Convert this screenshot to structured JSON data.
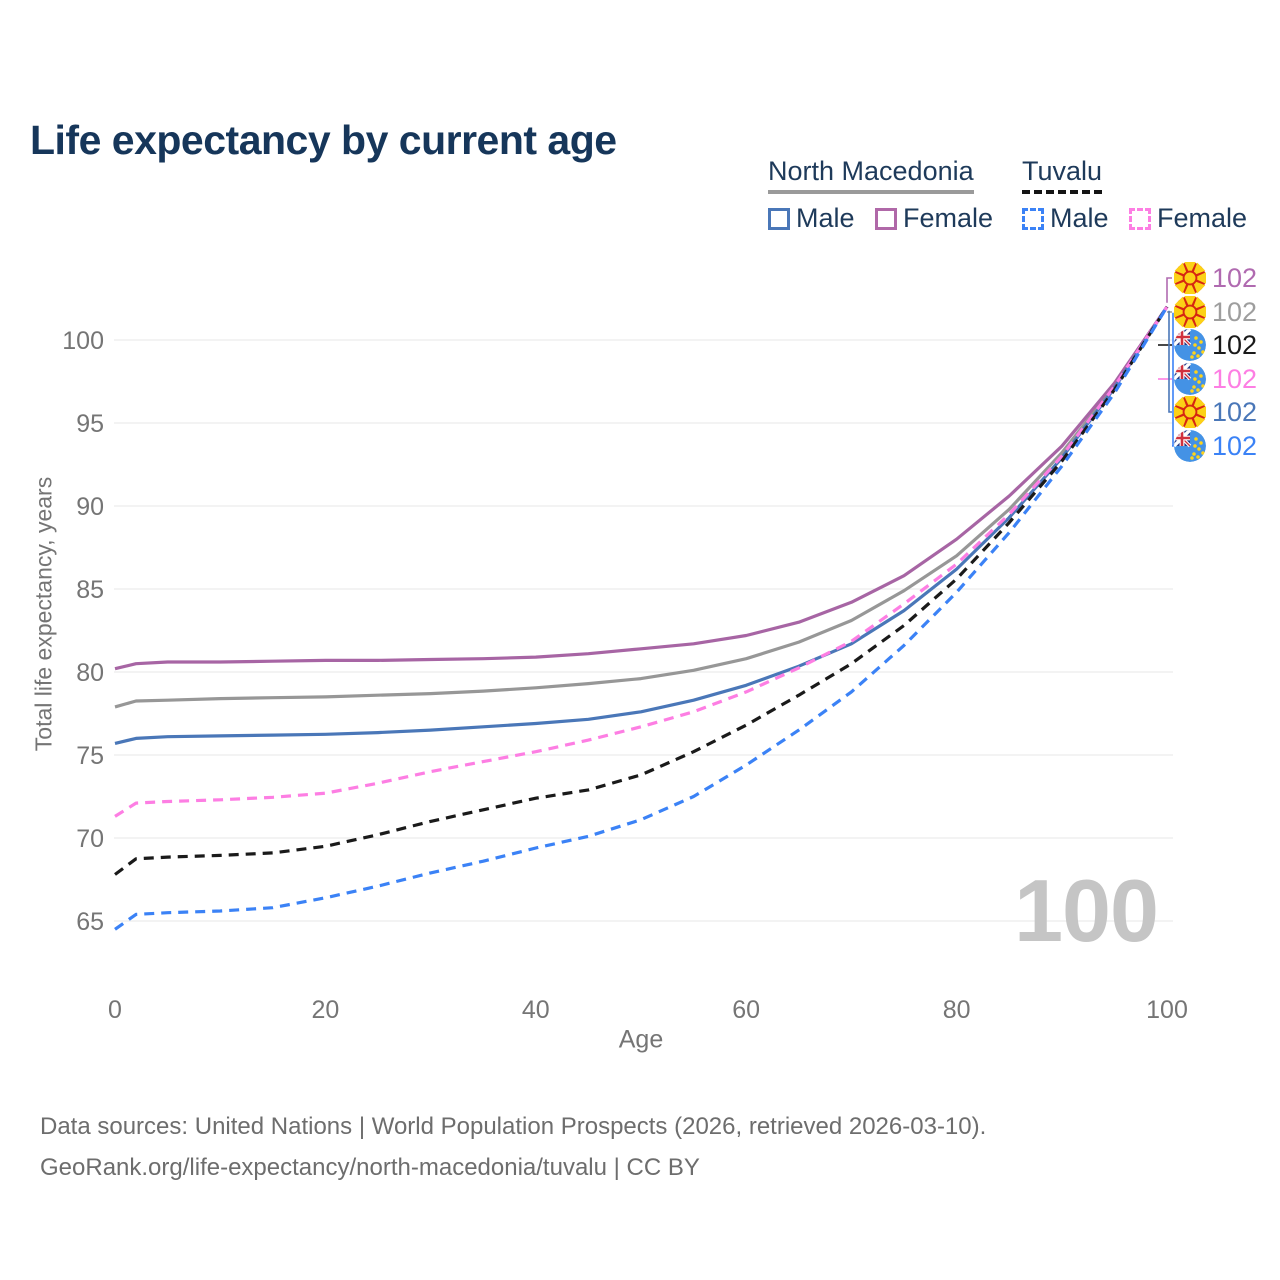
{
  "title": "Life expectancy by current age",
  "legend": {
    "groups": [
      {
        "label": "North Macedonia",
        "underline_style": "solid",
        "underline_color": "#9a9a9a",
        "items": [
          {
            "label": "Male",
            "color": "#4a77b8",
            "dash": false
          },
          {
            "label": "Female",
            "color": "#b068a8",
            "dash": false
          }
        ]
      },
      {
        "label": "Tuvalu",
        "underline_style": "dashed",
        "underline_color": "#141414",
        "items": [
          {
            "label": "Male",
            "color": "#3b82f6",
            "dash": true
          },
          {
            "label": "Female",
            "color": "#fd7ee3",
            "dash": true
          }
        ]
      }
    ]
  },
  "watermark": "100",
  "footer": {
    "line1": "Data sources: United Nations | World Population Prospects (2026, retrieved 2026-03-10).",
    "line2": "GeoRank.org/life-expectancy/north-macedonia/tuvalu | CC BY"
  },
  "chart_data": {
    "type": "line",
    "xlabel": "Age",
    "ylabel": "Total life expectancy, years",
    "x_ticks": [
      0,
      20,
      40,
      60,
      80,
      100
    ],
    "y_ticks": [
      65,
      70,
      75,
      80,
      85,
      90,
      95,
      100
    ],
    "xlim": [
      0,
      100
    ],
    "ylim": [
      63.5,
      103
    ],
    "grid": "horizontal",
    "x": [
      0,
      2,
      5,
      10,
      15,
      20,
      25,
      30,
      35,
      40,
      45,
      50,
      55,
      60,
      65,
      70,
      75,
      80,
      85,
      90,
      95,
      100
    ],
    "series": [
      {
        "id": "nm-total",
        "name": "North Macedonia",
        "country": "North Macedonia",
        "sex": "Both",
        "flag": "mk",
        "color": "#979797",
        "dash": false,
        "end_value": 102,
        "values": [
          77.9,
          78.25,
          78.3,
          78.4,
          78.45,
          78.5,
          78.6,
          78.7,
          78.85,
          79.05,
          79.3,
          79.6,
          80.1,
          80.8,
          81.8,
          83.1,
          84.9,
          87.0,
          89.8,
          93.2,
          97.2,
          102
        ]
      },
      {
        "id": "nm-female",
        "name": "North Macedonia Female",
        "country": "North Macedonia",
        "sex": "Female",
        "flag": "mk",
        "color": "#a765a4",
        "dash": false,
        "end_value": 102,
        "values": [
          80.2,
          80.5,
          80.6,
          80.6,
          80.65,
          80.7,
          80.7,
          80.75,
          80.8,
          80.9,
          81.1,
          81.4,
          81.7,
          82.2,
          83.0,
          84.2,
          85.8,
          88.0,
          90.6,
          93.6,
          97.4,
          102
        ]
      },
      {
        "id": "nm-male",
        "name": "North Macedonia Male",
        "country": "North Macedonia",
        "sex": "Male",
        "flag": "mk",
        "color": "#4a77b8",
        "dash": false,
        "end_value": 102,
        "values": [
          75.7,
          76.0,
          76.1,
          76.15,
          76.2,
          76.25,
          76.35,
          76.5,
          76.7,
          76.9,
          77.15,
          77.6,
          78.3,
          79.2,
          80.35,
          81.7,
          83.7,
          86.2,
          89.3,
          92.9,
          97.1,
          102
        ]
      },
      {
        "id": "tv-female",
        "name": "Tuvalu Female",
        "country": "Tuvalu",
        "sex": "Female",
        "flag": "tv",
        "color": "#fd7ee3",
        "dash": true,
        "end_value": 102,
        "values": [
          71.3,
          72.1,
          72.2,
          72.3,
          72.45,
          72.7,
          73.3,
          74.0,
          74.6,
          75.2,
          75.9,
          76.7,
          77.6,
          78.8,
          80.25,
          81.85,
          84.1,
          86.5,
          89.5,
          93.0,
          97.2,
          102
        ]
      },
      {
        "id": "tv-total",
        "name": "Tuvalu",
        "country": "Tuvalu",
        "sex": "Both",
        "flag": "tv",
        "color": "#1a1a1a",
        "dash": true,
        "end_value": 102,
        "values": [
          67.8,
          68.75,
          68.85,
          68.95,
          69.1,
          69.5,
          70.2,
          71.0,
          71.7,
          72.4,
          72.9,
          73.8,
          75.2,
          76.8,
          78.6,
          80.5,
          82.8,
          85.6,
          89.0,
          92.7,
          97.0,
          102
        ]
      },
      {
        "id": "tv-male",
        "name": "Tuvalu Male",
        "country": "Tuvalu",
        "sex": "Male",
        "flag": "tv",
        "color": "#3b82f6",
        "dash": true,
        "end_value": 102,
        "values": [
          64.5,
          65.4,
          65.5,
          65.6,
          65.8,
          66.4,
          67.1,
          67.9,
          68.6,
          69.4,
          70.1,
          71.1,
          72.5,
          74.4,
          76.5,
          78.8,
          81.6,
          84.8,
          88.4,
          92.4,
          96.8,
          102
        ]
      }
    ],
    "right_label_order": [
      "nm-female",
      "nm-total",
      "tv-total",
      "tv-female",
      "nm-male",
      "tv-male"
    ],
    "right_label_colors": {
      "nm-female": "#b06ab0",
      "nm-total": "#9e9e9e",
      "tv-total": "#1a1a1a",
      "tv-female": "#fd7ee3",
      "nm-male": "#4a77b8",
      "tv-male": "#3b82f6"
    }
  }
}
